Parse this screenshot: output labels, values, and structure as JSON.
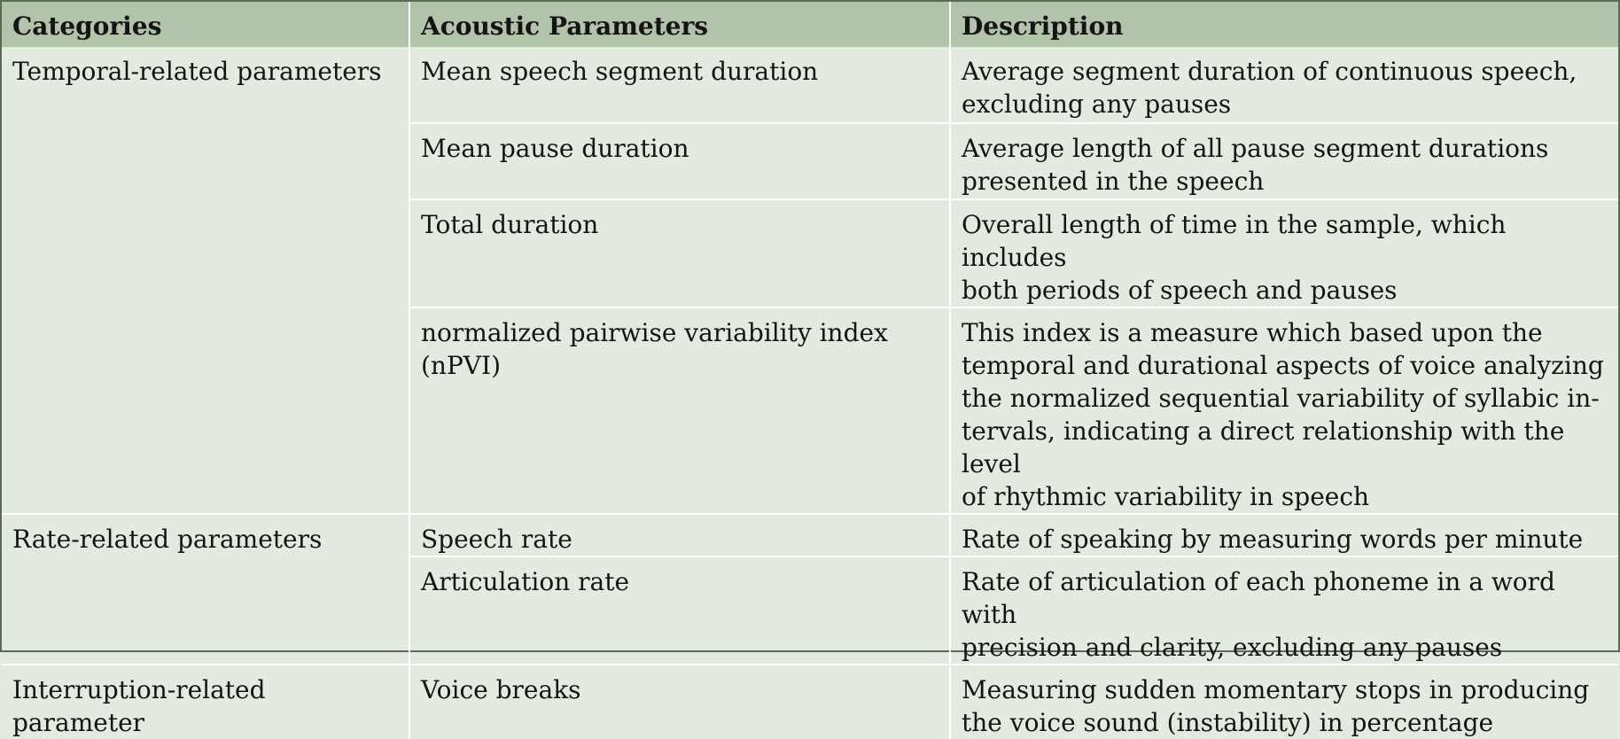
{
  "table": {
    "headers": [
      "Categories",
      "Acoustic Parameters",
      "Description"
    ],
    "groups": [
      {
        "category": "Temporal-related parameters",
        "rows": [
          {
            "parameter": "Mean speech segment duration",
            "description": "Average segment duration of continuous speech,\nexcluding any pauses"
          },
          {
            "parameter": "Mean pause duration",
            "description": "Average length of all pause segment durations\npresented in the speech"
          },
          {
            "parameter": "Total duration",
            "description": "Overall length of time in the sample, which includes\nboth periods of speech and pauses"
          },
          {
            "parameter": "normalized pairwise variability index\n(nPVI)",
            "description": "This index is a measure which based upon the\ntemporal and durational aspects of voice analyzing\nthe normalized sequential variability of syllabic in-\ntervals, indicating a direct relationship with the level\nof rhythmic variability in speech"
          }
        ]
      },
      {
        "category": "Rate-related parameters",
        "rows": [
          {
            "parameter": "Speech rate",
            "description": "Rate of speaking by measuring words per minute"
          },
          {
            "parameter": "Articulation rate",
            "description": "Rate of articulation of each phoneme in a word with\nprecision and clarity, excluding any pauses"
          }
        ]
      },
      {
        "category": "Interruption-related parameter",
        "rows": [
          {
            "parameter": "Voice breaks",
            "description": "Measuring sudden momentary stops in producing\nthe voice sound (instability) in percentage"
          }
        ]
      }
    ]
  }
}
